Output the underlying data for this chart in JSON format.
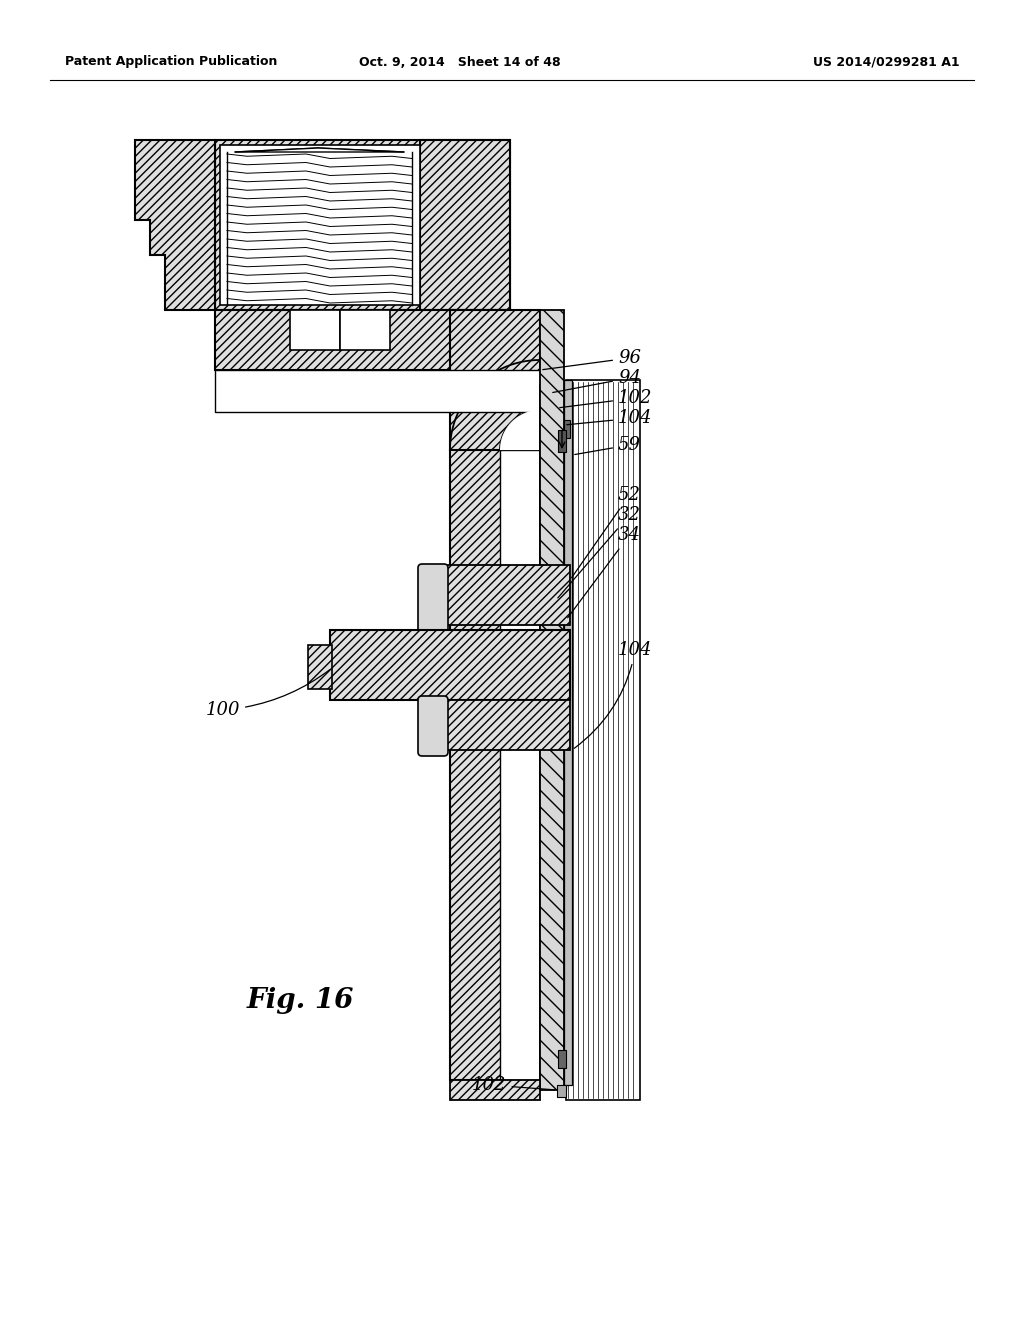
{
  "header_left": "Patent Application Publication",
  "header_mid": "Oct. 9, 2014   Sheet 14 of 48",
  "header_right": "US 2014/0299281 A1",
  "fig_label": "Fig. 16",
  "bg": "#ffffff"
}
